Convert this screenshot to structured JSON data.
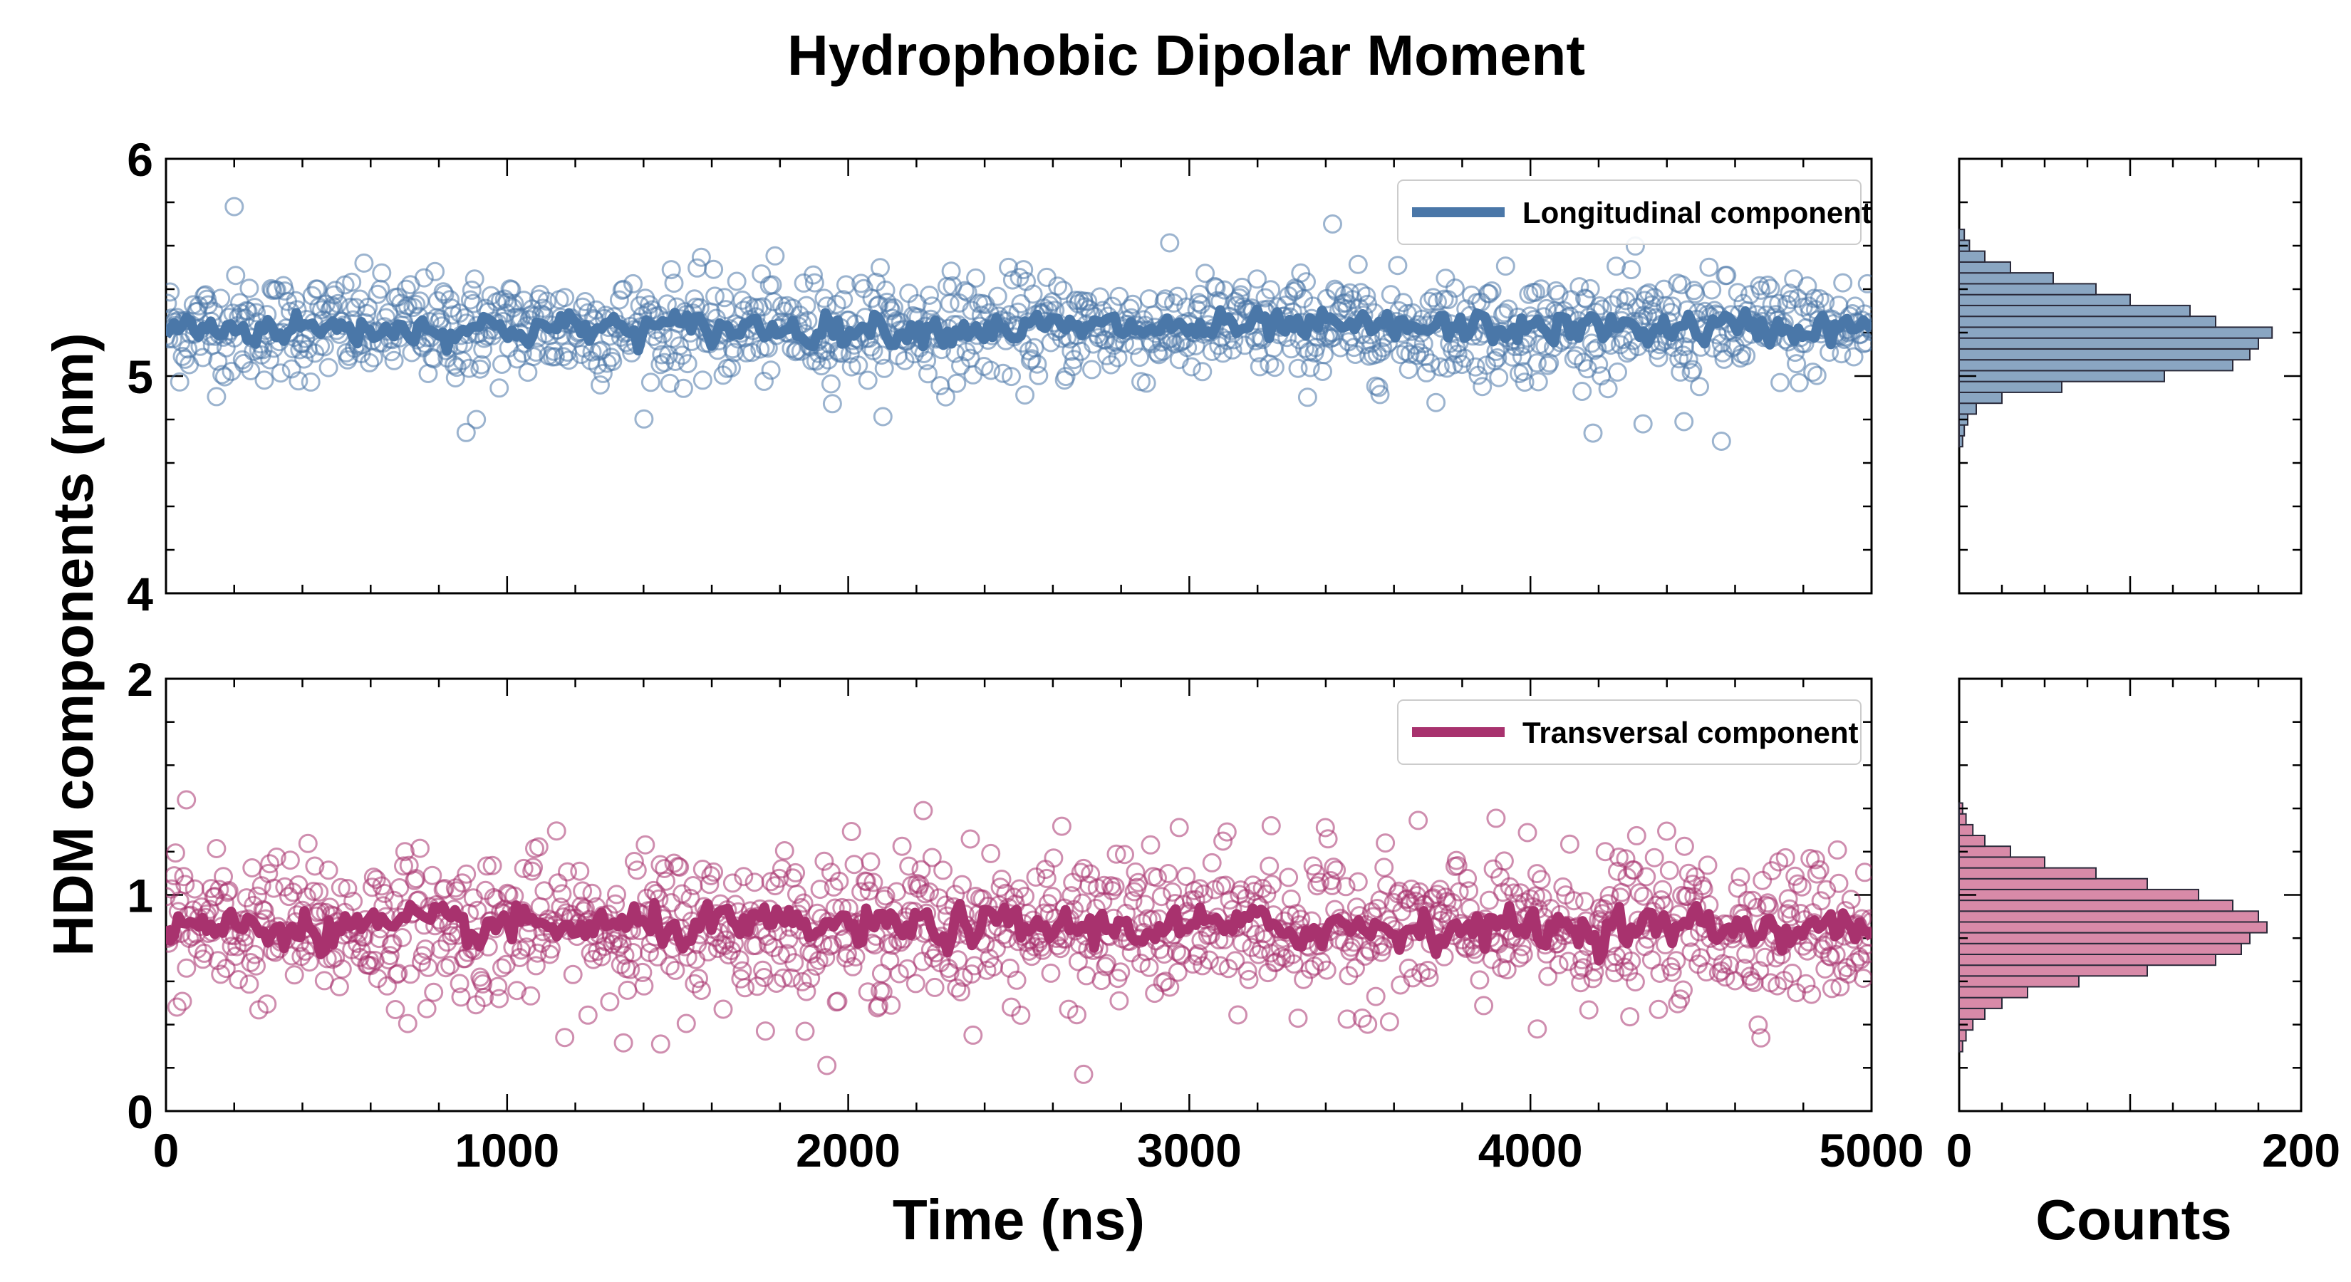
{
  "chart_data": {
    "type": "scatter",
    "title": "Hydrophobic Dipolar Moment",
    "ylabel": "HDM components (nm)",
    "xlabel": "Time (ns)",
    "hist_xlabel": "Counts",
    "xlim": [
      0,
      5000
    ],
    "hist_xlim": [
      0,
      200
    ],
    "x_ticks": [
      "0",
      "1000",
      "2000",
      "3000",
      "4000",
      "5000"
    ],
    "hist_x_ticks": [
      "0",
      "200"
    ],
    "panels": [
      {
        "series_name": "Longitudinal component",
        "color": "#4a77a8",
        "hist_fill": "#8aa6c2",
        "ylim": [
          4,
          6
        ],
        "y_ticks": [
          "4",
          "5",
          "6"
        ],
        "mean": 5.22,
        "scatter_sd": 0.12,
        "running_mean_sd": 0.04,
        "legend_position": "top-right",
        "outliers": [
          [
            200,
            5.78
          ],
          [
            880,
            4.74
          ],
          [
            3420,
            5.7
          ],
          [
            4560,
            4.7
          ],
          [
            4330,
            4.78
          ],
          [
            4450,
            4.79
          ],
          [
            910,
            4.8
          ]
        ],
        "histogram": {
          "bin_centers": [
            4.7,
            4.75,
            4.8,
            4.85,
            4.9,
            4.95,
            5.0,
            5.05,
            5.1,
            5.15,
            5.2,
            5.25,
            5.3,
            5.35,
            5.4,
            5.45,
            5.5,
            5.55,
            5.6,
            5.65
          ],
          "counts": [
            2,
            3,
            5,
            10,
            25,
            60,
            120,
            160,
            170,
            175,
            183,
            150,
            135,
            100,
            80,
            55,
            30,
            15,
            6,
            3
          ]
        }
      },
      {
        "series_name": "Transversal component",
        "color": "#a8326e",
        "hist_fill": "#d88aa8",
        "ylim": [
          0,
          2
        ],
        "y_ticks": [
          "0",
          "1",
          "2"
        ],
        "mean": 0.85,
        "scatter_sd": 0.17,
        "running_mean_sd": 0.05,
        "legend_position": "top-right",
        "outliers": [
          [
            60,
            1.44
          ],
          [
            2690,
            0.17
          ],
          [
            2220,
            1.39
          ],
          [
            1450,
            0.31
          ],
          [
            3240,
            1.32
          ],
          [
            4020,
            0.38
          ]
        ],
        "histogram": {
          "bin_centers": [
            0.3,
            0.35,
            0.4,
            0.45,
            0.5,
            0.55,
            0.6,
            0.65,
            0.7,
            0.75,
            0.8,
            0.85,
            0.9,
            0.95,
            1.0,
            1.05,
            1.1,
            1.15,
            1.2,
            1.25,
            1.3,
            1.35,
            1.4
          ],
          "counts": [
            2,
            4,
            8,
            15,
            25,
            40,
            70,
            110,
            150,
            165,
            170,
            180,
            175,
            160,
            140,
            110,
            80,
            50,
            30,
            15,
            8,
            4,
            2
          ]
        }
      }
    ]
  }
}
